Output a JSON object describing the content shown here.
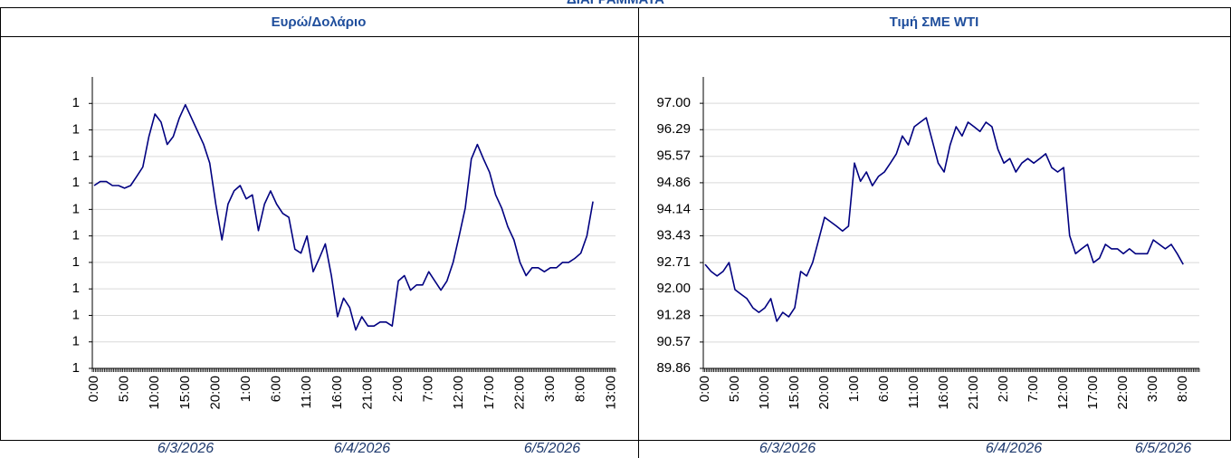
{
  "page_title": "ΔΙΑΓΡΑΜΜΑΤΑ",
  "chart_data": [
    {
      "type": "line",
      "title": "Ευρώ/Δολάριο",
      "color": "#000080",
      "grid": true,
      "categories": [
        "0:00",
        null,
        null,
        null,
        null,
        "5:00",
        null,
        null,
        null,
        null,
        "10:00",
        null,
        null,
        null,
        null,
        "15:00",
        null,
        null,
        null,
        null,
        "20:00",
        null,
        null,
        null,
        null,
        "1:00",
        null,
        null,
        null,
        null,
        "6:00",
        null,
        null,
        null,
        null,
        "11:00",
        null,
        null,
        null,
        null,
        "16:00",
        null,
        null,
        null,
        null,
        "21:00",
        null,
        null,
        null,
        null,
        "2:00",
        null,
        null,
        null,
        null,
        "7:00",
        null,
        null,
        null,
        null,
        "12:00",
        null,
        null,
        null,
        null,
        "17:00",
        null,
        null,
        null,
        null,
        "22:00",
        null,
        null,
        null,
        null,
        "3:00",
        null,
        null,
        null,
        null,
        "8:00",
        null,
        null,
        null,
        null,
        "13:00"
      ],
      "values": [
        1.1738,
        1.1741,
        1.1741,
        1.1738,
        1.1738,
        1.1736,
        1.1738,
        1.1745,
        1.1752,
        1.1775,
        1.1792,
        1.1786,
        1.1769,
        1.1775,
        1.1789,
        1.1799,
        1.1789,
        1.1779,
        1.1769,
        1.1755,
        1.1724,
        1.1697,
        1.1724,
        1.1734,
        1.1738,
        1.1728,
        1.1731,
        1.1704,
        1.1724,
        1.1734,
        1.1724,
        1.1717,
        1.1714,
        1.169,
        1.1687,
        1.17,
        1.1673,
        1.1683,
        1.1694,
        1.167,
        1.1639,
        1.1653,
        1.1646,
        1.1629,
        1.1639,
        1.1632,
        1.1632,
        1.1635,
        1.1635,
        1.1632,
        1.1666,
        1.167,
        1.1659,
        1.1663,
        1.1663,
        1.1673,
        1.1666,
        1.1659,
        1.1666,
        1.168,
        1.17,
        1.1721,
        1.1758,
        1.1769,
        1.1758,
        1.1748,
        1.1731,
        1.1721,
        1.1707,
        1.1697,
        1.168,
        1.167,
        1.1676,
        1.1676,
        1.1673,
        1.1676,
        1.1676,
        1.168,
        1.168,
        1.1683,
        1.1687,
        1.17,
        1.1726,
        null,
        null,
        null
      ],
      "ylim": [
        1.16,
        1.182
      ],
      "yticks": [
        {
          "value": 1.16,
          "label": "1"
        },
        {
          "value": 1.162,
          "label": "1"
        },
        {
          "value": 1.164,
          "label": "1"
        },
        {
          "value": 1.166,
          "label": "1"
        },
        {
          "value": 1.168,
          "label": "1"
        },
        {
          "value": 1.17,
          "label": "1"
        },
        {
          "value": 1.172,
          "label": "1"
        },
        {
          "value": 1.174,
          "label": "1"
        },
        {
          "value": 1.176,
          "label": "1"
        },
        {
          "value": 1.178,
          "label": "1"
        },
        {
          "value": 1.18,
          "label": "1"
        }
      ],
      "dates": [
        "6/3/2026",
        "6/4/2026",
        "6/5/2026"
      ]
    },
    {
      "type": "line",
      "title": "Τιμή ΣΜΕ WTI",
      "color": "#000080",
      "grid": true,
      "categories": [
        "0:00",
        null,
        null,
        null,
        null,
        "5:00",
        null,
        null,
        null,
        null,
        "10:00",
        null,
        null,
        null,
        null,
        "15:00",
        null,
        null,
        null,
        null,
        "20:00",
        null,
        null,
        null,
        null,
        "1:00",
        null,
        null,
        null,
        null,
        "6:00",
        null,
        null,
        null,
        null,
        "11:00",
        null,
        null,
        null,
        null,
        "16:00",
        null,
        null,
        null,
        null,
        "21:00",
        null,
        null,
        null,
        null,
        "2:00",
        null,
        null,
        null,
        null,
        "7:00",
        null,
        null,
        null,
        null,
        "12:00",
        null,
        null,
        null,
        null,
        "17:00",
        null,
        null,
        null,
        null,
        "22:00",
        null,
        null,
        null,
        null,
        "3:00",
        null,
        null,
        null,
        null,
        "8:00",
        null,
        null
      ],
      "values": [
        92.66,
        92.47,
        92.35,
        92.47,
        92.71,
        91.98,
        91.86,
        91.74,
        91.49,
        91.37,
        91.49,
        91.74,
        91.13,
        91.37,
        91.25,
        91.49,
        92.47,
        92.35,
        92.71,
        93.32,
        93.93,
        93.81,
        93.69,
        93.56,
        93.69,
        95.39,
        94.9,
        95.15,
        94.78,
        95.03,
        95.15,
        95.39,
        95.64,
        96.12,
        95.88,
        96.37,
        96.49,
        96.61,
        96.0,
        95.39,
        95.15,
        95.88,
        96.37,
        96.12,
        96.49,
        96.37,
        96.24,
        96.49,
        96.37,
        95.76,
        95.39,
        95.51,
        95.15,
        95.39,
        95.51,
        95.39,
        95.51,
        95.64,
        95.27,
        95.15,
        95.27,
        93.44,
        92.95,
        93.08,
        93.2,
        92.71,
        92.83,
        93.2,
        93.08,
        93.08,
        92.95,
        93.08,
        92.95,
        92.95,
        92.95,
        93.32,
        93.2,
        93.08,
        93.2,
        92.95,
        92.66,
        null,
        null
      ],
      "ylim": [
        89.86,
        97.71
      ],
      "yticks": [
        89.86,
        90.57,
        91.28,
        {
          "value": 92,
          "label": "92.00"
        },
        92.71,
        93.43,
        94.14,
        94.86,
        95.57,
        96.29,
        {
          "value": 97,
          "label": "97.00"
        }
      ],
      "dates": [
        "6/3/2026",
        "6/4/2026",
        "6/5/2026"
      ]
    }
  ]
}
